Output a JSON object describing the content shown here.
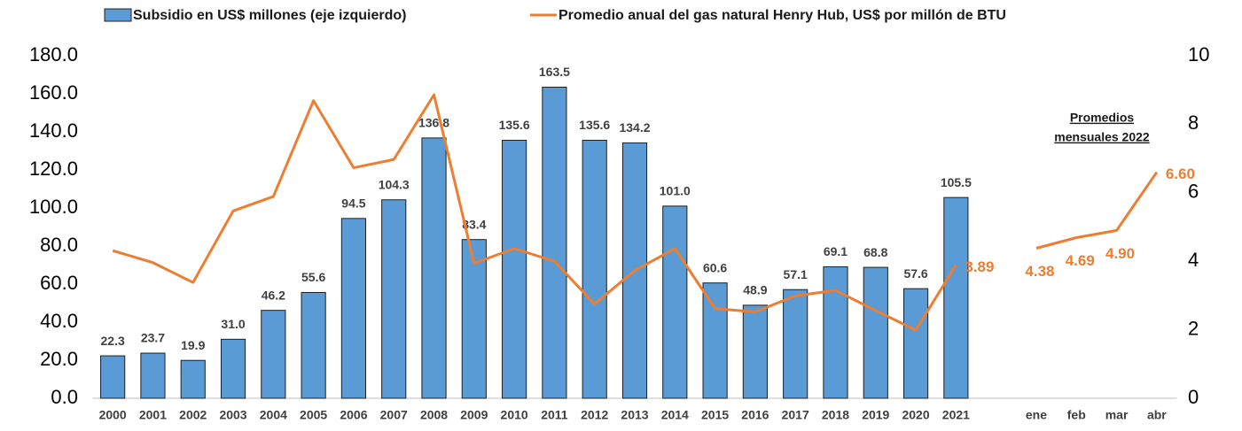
{
  "chart_data": {
    "type": "bar_line",
    "categories": [
      "2000",
      "2001",
      "2002",
      "2003",
      "2004",
      "2005",
      "2006",
      "2007",
      "2008",
      "2009",
      "2010",
      "2011",
      "2012",
      "2013",
      "2014",
      "2015",
      "2016",
      "2017",
      "2018",
      "2019",
      "2020",
      "2021",
      null,
      "ene",
      "feb",
      "mar",
      "abr"
    ],
    "series": [
      {
        "name": "Subsidio en US$ millones (eje izquierdo)",
        "type": "bar",
        "color": "#5b9bd5",
        "axis": "y",
        "values": [
          22.3,
          23.7,
          19.9,
          31.0,
          46.2,
          55.6,
          94.5,
          104.3,
          136.8,
          83.4,
          135.6,
          163.5,
          135.6,
          134.2,
          101.0,
          60.6,
          48.9,
          57.1,
          69.1,
          68.8,
          57.6,
          105.5,
          null,
          null,
          null,
          null,
          null
        ],
        "value_labels": [
          "22.3",
          "23.7",
          "19.9",
          "31.0",
          "46.2",
          "55.6",
          "94.5",
          "104.3",
          "136.8",
          "83.4",
          "135.6",
          "163.5",
          "135.6",
          "134.2",
          "101.0",
          "60.6",
          "48.9",
          "57.1",
          "69.1",
          "68.8",
          "57.6",
          "105.5",
          null,
          null,
          null,
          null,
          null
        ]
      },
      {
        "name": "Promedio anual del gas natural Henry Hub, US$ por millón de BTU",
        "type": "line",
        "color": "#ed7d31",
        "axis": "y2",
        "values": [
          4.31,
          3.96,
          3.38,
          5.47,
          5.89,
          8.69,
          6.73,
          6.97,
          8.86,
          3.94,
          4.37,
          4.0,
          2.75,
          3.73,
          4.37,
          2.62,
          2.52,
          2.99,
          3.15,
          2.56,
          1.99,
          3.89,
          null,
          4.38,
          4.69,
          4.9,
          6.6
        ],
        "value_labels": [
          null,
          null,
          null,
          null,
          null,
          null,
          null,
          null,
          null,
          null,
          null,
          null,
          null,
          null,
          null,
          null,
          null,
          null,
          null,
          null,
          null,
          "3.89",
          null,
          "4.38",
          "4.69",
          "4.90",
          "6.60"
        ]
      }
    ],
    "ylim": [
      0,
      180
    ],
    "yticks": [
      {
        "value": 0,
        "label": "0.0"
      },
      {
        "value": 20,
        "label": "20.0"
      },
      {
        "value": 40,
        "label": "40.0"
      },
      {
        "value": 60,
        "label": "60.0"
      },
      {
        "value": 80,
        "label": "80.0"
      },
      {
        "value": 100,
        "label": "100.0"
      },
      {
        "value": 120,
        "label": "120.0"
      },
      {
        "value": 140,
        "label": "140.0"
      },
      {
        "value": 160,
        "label": "160.0"
      },
      {
        "value": 180,
        "label": "180.0"
      }
    ],
    "y2lim": [
      0,
      10
    ],
    "y2ticks": [
      0,
      2,
      4,
      6,
      8,
      10
    ],
    "annotation": [
      "Promedios",
      "mensuales 2022"
    ],
    "grid": false
  }
}
